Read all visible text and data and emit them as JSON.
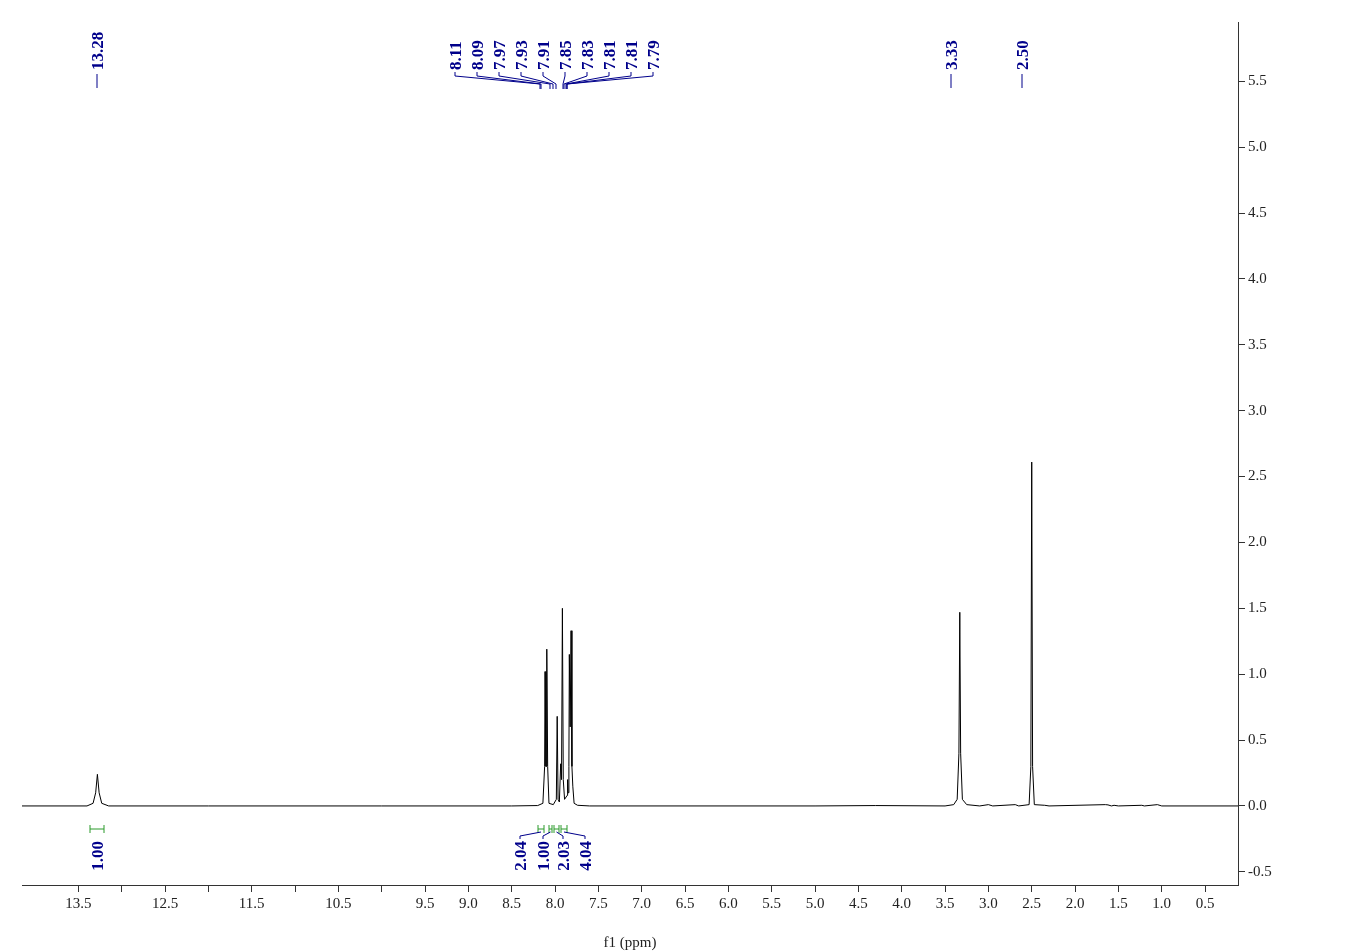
{
  "chart_data": {
    "type": "line",
    "xlabel": "f1 (ppm)",
    "xlim": [
      14.15,
      0.12
    ],
    "ylim": [
      -0.6,
      5.95
    ],
    "xticks": [
      13.5,
      {
        "value": 13,
        "label": null
      },
      12.5,
      {
        "value": 12,
        "label": null
      },
      11.5,
      {
        "value": 11,
        "label": null
      },
      10.5,
      {
        "value": 10,
        "label": null
      },
      9.5,
      {
        "value": 9,
        "label": "9.0"
      },
      8.5,
      {
        "value": 8,
        "label": "8.0"
      },
      7.5,
      {
        "value": 7,
        "label": "7.0"
      },
      6.5,
      {
        "value": 6,
        "label": "6.0"
      },
      5.5,
      {
        "value": 5,
        "label": "5.0"
      },
      4.5,
      {
        "value": 4,
        "label": "4.0"
      },
      3.5,
      {
        "value": 3,
        "label": "3.0"
      },
      2.5,
      {
        "value": 2,
        "label": "2.0"
      },
      1.5,
      {
        "value": 1,
        "label": "1.0"
      },
      0.5
    ],
    "yticks": [
      -0.5,
      {
        "value": 0,
        "label": "0.0"
      },
      0.5,
      {
        "value": 1,
        "label": "1.0"
      },
      1.5,
      {
        "value": 2,
        "label": "2.0"
      },
      2.5,
      {
        "value": 3,
        "label": "3.0"
      },
      3.5,
      {
        "value": 4,
        "label": "4.0"
      },
      4.5,
      {
        "value": 5,
        "label": "5.0"
      },
      5.5
    ],
    "grid": false,
    "legend": false,
    "marker": "none",
    "line_style": "solid",
    "series": [
      {
        "color": "#000000",
        "x": [
          14.15,
          13.4,
          13.33,
          13.3,
          13.28,
          13.26,
          13.23,
          13.15,
          12.0,
          10.0,
          8.5,
          8.2,
          8.14,
          8.12,
          8.115,
          8.105,
          8.1,
          8.095,
          8.085,
          8.07,
          8.02,
          7.985,
          7.975,
          7.965,
          7.95,
          7.935,
          7.925,
          7.915,
          7.905,
          7.89,
          7.86,
          7.855,
          7.85,
          7.84,
          7.835,
          7.825,
          7.815,
          7.805,
          7.795,
          7.78,
          7.74,
          7.6,
          5.0,
          4.3,
          3.5,
          3.4,
          3.36,
          3.34,
          3.33,
          3.32,
          3.3,
          3.25,
          3.1,
          3.0,
          2.95,
          2.69,
          2.65,
          2.53,
          2.51,
          2.5,
          2.49,
          2.47,
          2.35,
          2.3,
          1.65,
          1.62,
          1.58,
          1.55,
          1.5,
          1.23,
          1.2,
          1.05,
          1.0,
          0.12
        ],
        "values": [
          0,
          0,
          0.02,
          0.1,
          0.24,
          0.1,
          0.02,
          0,
          0,
          0,
          0,
          0.003,
          0.02,
          0.3,
          1.02,
          0.3,
          0.3,
          1.19,
          0.3,
          0.02,
          0.01,
          0.05,
          0.68,
          0.05,
          0.03,
          0.32,
          0.2,
          1.5,
          0.2,
          0.05,
          0.08,
          0.2,
          0.1,
          0.3,
          1.15,
          0.6,
          1.33,
          0.3,
          0.15,
          0.02,
          0.005,
          0,
          0,
          0.003,
          0,
          0.01,
          0.05,
          0.4,
          1.47,
          0.4,
          0.05,
          0.01,
          0,
          0.01,
          0,
          0.01,
          0,
          0.01,
          0.3,
          2.61,
          0.3,
          0.01,
          0.005,
          0,
          0.01,
          0.008,
          0,
          0.005,
          0,
          0.005,
          0,
          0.01,
          0,
          0
        ]
      }
    ],
    "annotations": [
      "13.28",
      "8.11",
      "8.09",
      "7.97",
      "7.93",
      "7.91",
      "7.85",
      "7.83",
      "7.81",
      "7.81",
      "7.79",
      "3.33",
      "2.50",
      "1.00",
      "2.04",
      "1.00",
      "2.03",
      "4.04"
    ]
  }
}
